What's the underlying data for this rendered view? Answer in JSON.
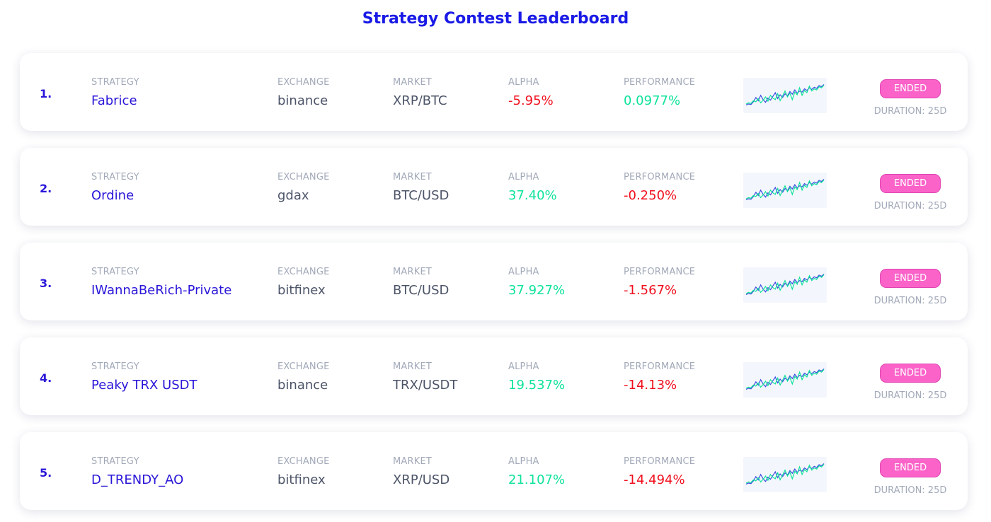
{
  "page": {
    "title": "Strategy Contest Leaderboard"
  },
  "labels": {
    "strategy": "STRATEGY",
    "exchange": "EXCHANGE",
    "market": "MARKET",
    "alpha": "ALPHA",
    "performance": "PERFORMANCE"
  },
  "colors": {
    "title": "#1a1ae6",
    "rank": "#2a16d8",
    "strategy_name": "#2a16d8",
    "positive": "#0ee39a",
    "negative": "#f0101e",
    "label": "#a2a9b9",
    "value": "#4c5468",
    "badge": "#fb63c9",
    "spark_series_a": "#3b4de0",
    "spark_series_b": "#0ee39a"
  },
  "rows": [
    {
      "rank": "1.",
      "strategy": "Fabrice",
      "exchange": "binance",
      "market": "XRP/BTC",
      "alpha": "-5.95%",
      "alpha_sign": "neg",
      "performance": "0.0977%",
      "performance_sign": "pos",
      "status": "ENDED",
      "duration": "DURATION: 25D"
    },
    {
      "rank": "2.",
      "strategy": "Ordine",
      "exchange": "gdax",
      "market": "BTC/USD",
      "alpha": "37.40%",
      "alpha_sign": "pos",
      "performance": "-0.250%",
      "performance_sign": "neg",
      "status": "ENDED",
      "duration": "DURATION: 25D"
    },
    {
      "rank": "3.",
      "strategy": "IWannaBeRich-Private",
      "exchange": "bitfinex",
      "market": "BTC/USD",
      "alpha": "37.927%",
      "alpha_sign": "pos",
      "performance": "-1.567%",
      "performance_sign": "neg",
      "status": "ENDED",
      "duration": "DURATION: 25D"
    },
    {
      "rank": "4.",
      "strategy": "Peaky TRX USDT",
      "exchange": "binance",
      "market": "TRX/USDT",
      "alpha": "19.537%",
      "alpha_sign": "pos",
      "performance": "-14.13%",
      "performance_sign": "neg",
      "status": "ENDED",
      "duration": "DURATION: 25D"
    },
    {
      "rank": "5.",
      "strategy": "D_TRENDY_AO",
      "exchange": "bitfinex",
      "market": "XRP/USD",
      "alpha": "21.107%",
      "alpha_sign": "pos",
      "performance": "-14.494%",
      "performance_sign": "neg",
      "status": "ENDED",
      "duration": "DURATION: 25D"
    }
  ],
  "sparkline": {
    "series_a": [
      12,
      14,
      13,
      18,
      26,
      20,
      30,
      22,
      17,
      25,
      21,
      28,
      35,
      24,
      31,
      26,
      33,
      29,
      37,
      32,
      40,
      34,
      38,
      36,
      42,
      39,
      44,
      41,
      45,
      43,
      48,
      46,
      50
    ],
    "series_b": [
      14,
      16,
      15,
      20,
      18,
      24,
      16,
      21,
      27,
      19,
      30,
      25,
      22,
      33,
      20,
      29,
      38,
      27,
      34,
      22,
      36,
      31,
      44,
      30,
      39,
      35,
      47,
      38,
      42,
      40,
      46,
      44,
      49
    ]
  }
}
